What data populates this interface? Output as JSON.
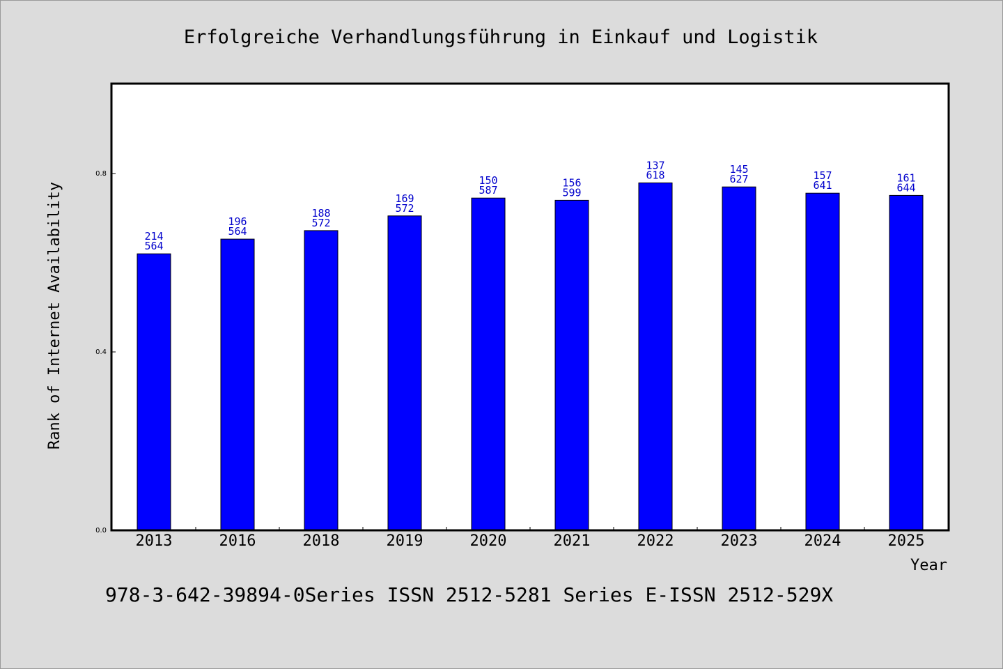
{
  "chart_data": {
    "type": "bar",
    "title": "Erfolgreiche Verhandlungsführung in Einkauf und Logistik",
    "xlabel": "Year",
    "ylabel": "Rank of Internet Availability",
    "categories": [
      "2013",
      "2016",
      "2018",
      "2019",
      "2020",
      "2021",
      "2022",
      "2023",
      "2024",
      "2025"
    ],
    "values": [
      0.62,
      0.653,
      0.672,
      0.705,
      0.745,
      0.74,
      0.779,
      0.77,
      0.756,
      0.751
    ],
    "bar_labels_top": [
      "214",
      "196",
      "188",
      "169",
      "150",
      "156",
      "137",
      "145",
      "157",
      "161"
    ],
    "bar_labels_bottom": [
      "564",
      "564",
      "572",
      "572",
      "587",
      "599",
      "618",
      "627",
      "641",
      "644"
    ],
    "yticks": [
      "0.0",
      "0.4",
      "0.8"
    ],
    "ylim": [
      0,
      1.0
    ],
    "grid": false,
    "legend": "none",
    "bar_color": "#0000ff",
    "label_color": "#0000cc"
  },
  "footer": {
    "text": "978-3-642-39894-0Series ISSN 2512-5281 Series E-ISSN 2512-529X"
  }
}
